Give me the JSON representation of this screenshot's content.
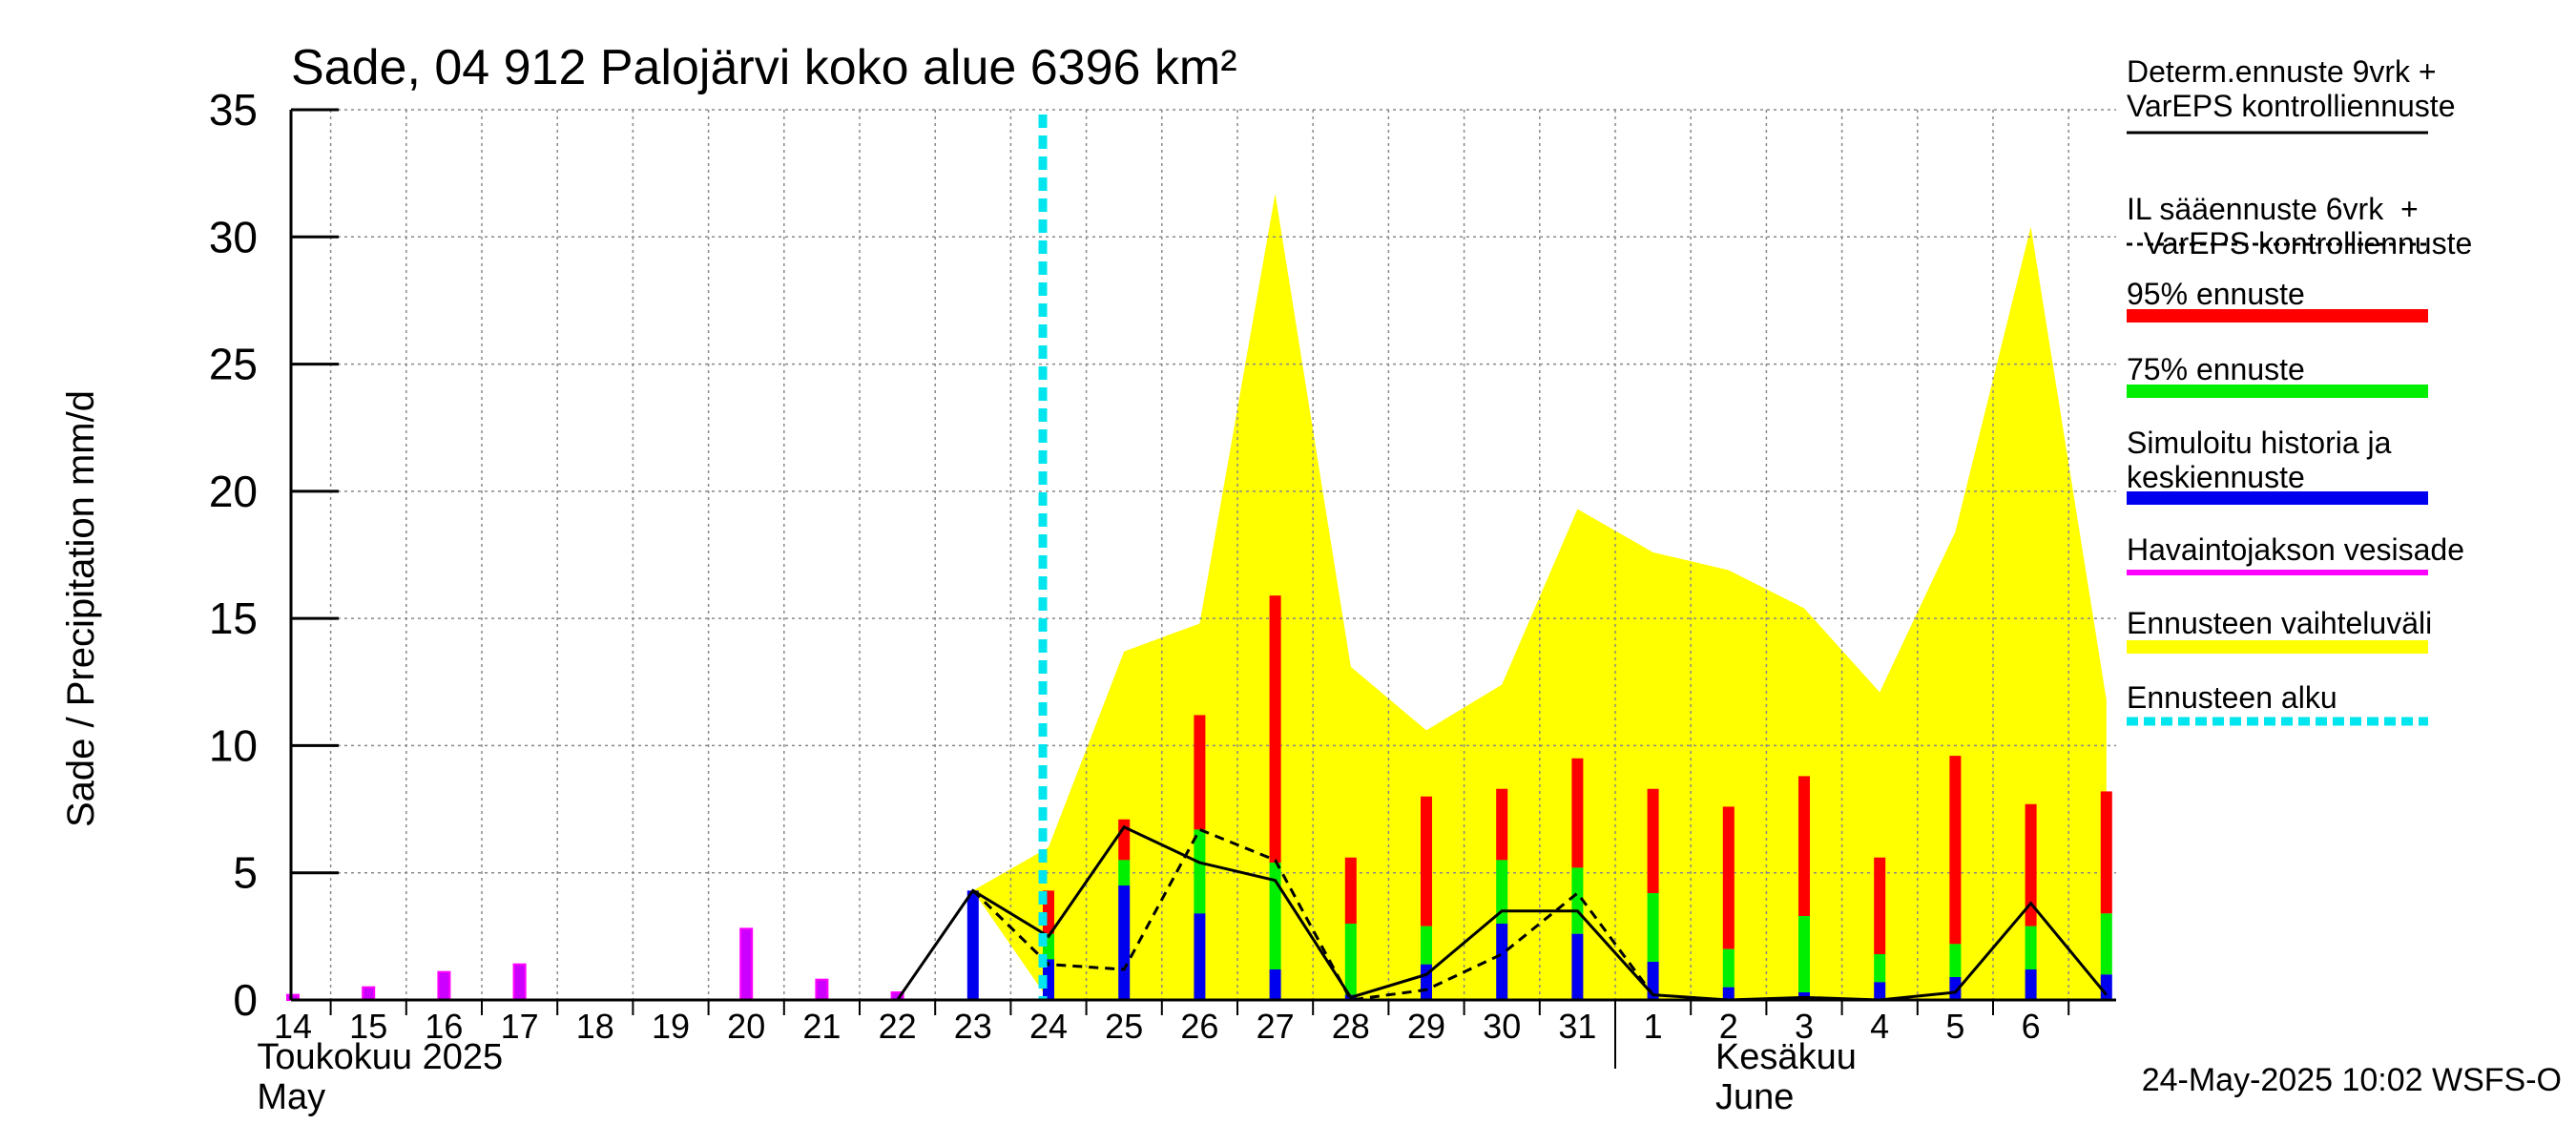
{
  "chart_data": {
    "type": "bar",
    "title": "Sade, 04 912 Palojärvi koko alue 6396 km²",
    "ylabel": "Sade / Precipitation   mm/d",
    "ylim": [
      0,
      35
    ],
    "yticks": [
      0,
      5,
      10,
      15,
      20,
      25,
      30,
      35
    ],
    "grid": true,
    "legend_position": "right",
    "x_ticks": [
      {
        "x": 0,
        "label": "14"
      },
      {
        "x": 1,
        "label": "15"
      },
      {
        "x": 2,
        "label": "16"
      },
      {
        "x": 3,
        "label": "17"
      },
      {
        "x": 4,
        "label": "18"
      },
      {
        "x": 5,
        "label": "19"
      },
      {
        "x": 6,
        "label": "20"
      },
      {
        "x": 7,
        "label": "21"
      },
      {
        "x": 8,
        "label": "22"
      },
      {
        "x": 9,
        "label": "23"
      },
      {
        "x": 10,
        "label": "24"
      },
      {
        "x": 11,
        "label": "25"
      },
      {
        "x": 12,
        "label": "26"
      },
      {
        "x": 13,
        "label": "27"
      },
      {
        "x": 14,
        "label": "28"
      },
      {
        "x": 15,
        "label": "29"
      },
      {
        "x": 16,
        "label": "30"
      },
      {
        "x": 17,
        "label": "31"
      },
      {
        "x": 18,
        "label": "1"
      },
      {
        "x": 19,
        "label": "2"
      },
      {
        "x": 20,
        "label": "3"
      },
      {
        "x": 21,
        "label": "4"
      },
      {
        "x": 22,
        "label": "5"
      },
      {
        "x": 23,
        "label": "6"
      }
    ],
    "month_labels": [
      {
        "x": 0,
        "lines": [
          "Toukokuu  2025",
          "May"
        ]
      },
      {
        "x": 19.3,
        "lines": [
          "Kesäkuu",
          "June"
        ]
      }
    ],
    "month_divider_x": 18,
    "forecast_start_x": 10,
    "xlim": [
      0,
      24
    ],
    "observed_precipitation": [
      {
        "x": 0,
        "value": 0.2
      },
      {
        "x": 1,
        "value": 0.5
      },
      {
        "x": 2,
        "value": 1.1
      },
      {
        "x": 3,
        "value": 1.4
      },
      {
        "x": 6,
        "value": 2.8
      },
      {
        "x": 7,
        "value": 0.8
      },
      {
        "x": 8,
        "value": 0.3
      }
    ],
    "simulated_history": [
      {
        "x": 9,
        "value": 4.3
      }
    ],
    "forecast_bars": [
      {
        "x": 10,
        "median": 1.6,
        "p75": 2.6,
        "p95": 4.3
      },
      {
        "x": 11,
        "median": 4.5,
        "p75": 5.5,
        "p95": 7.1
      },
      {
        "x": 12,
        "median": 3.4,
        "p75": 6.7,
        "p95": 11.2
      },
      {
        "x": 13,
        "median": 1.2,
        "p75": 5.4,
        "p95": 15.9
      },
      {
        "x": 14,
        "median": 0.2,
        "p75": 3.0,
        "p95": 5.6
      },
      {
        "x": 15,
        "median": 1.4,
        "p75": 2.9,
        "p95": 8.0
      },
      {
        "x": 16,
        "median": 3.0,
        "p75": 5.5,
        "p95": 8.3
      },
      {
        "x": 17,
        "median": 2.6,
        "p75": 5.2,
        "p95": 9.5
      },
      {
        "x": 18,
        "median": 1.5,
        "p75": 4.2,
        "p95": 8.3
      },
      {
        "x": 19,
        "median": 0.5,
        "p75": 2.0,
        "p95": 7.6
      },
      {
        "x": 20,
        "median": 0.3,
        "p75": 3.3,
        "p95": 8.8
      },
      {
        "x": 21,
        "median": 0.7,
        "p75": 1.8,
        "p95": 5.6
      },
      {
        "x": 22,
        "median": 0.9,
        "p75": 2.2,
        "p95": 9.6
      },
      {
        "x": 23,
        "median": 1.2,
        "p75": 2.9,
        "p95": 7.7
      },
      {
        "x": 24,
        "median": 1.0,
        "p75": 3.4,
        "p95": 8.2
      }
    ],
    "forecast_range": {
      "x": [
        9,
        10,
        11,
        12,
        13,
        14,
        15,
        16,
        17,
        18,
        19,
        20,
        21,
        22,
        23,
        24
      ],
      "upper": [
        4.3,
        6.0,
        13.7,
        14.8,
        31.7,
        13.1,
        10.6,
        12.4,
        19.3,
        17.6,
        16.9,
        15.4,
        12.1,
        18.4,
        30.4,
        11.8
      ],
      "lower": [
        4.3,
        0.0,
        0.0,
        0.0,
        0.0,
        0.0,
        0.0,
        0.0,
        0.0,
        0.0,
        0.0,
        0.0,
        0.0,
        0.0,
        0.0,
        0.0
      ]
    },
    "deterministic_9d": {
      "x": [
        8,
        9,
        10,
        11,
        12,
        13,
        14,
        15,
        16,
        17,
        18,
        19,
        20,
        21,
        22,
        23,
        24
      ],
      "values": [
        0.0,
        4.3,
        2.5,
        6.8,
        5.4,
        4.7,
        0.1,
        1.0,
        3.5,
        3.5,
        0.2,
        0.0,
        0.1,
        0.0,
        0.3,
        3.8,
        0.2
      ]
    },
    "il_forecast_6d": {
      "x": [
        9,
        10,
        11,
        12,
        13,
        14,
        15,
        16,
        17,
        18
      ],
      "values": [
        4.3,
        1.4,
        1.2,
        6.7,
        5.5,
        0.0,
        0.4,
        1.8,
        4.2,
        0.2
      ]
    },
    "legend": [
      {
        "label": "Determ.ennuste 9vrk +\nVarEPS kontrolliennuste",
        "color": "#000000",
        "style": "solid-thin"
      },
      {
        "label": "IL sääennuste 6vrk  +\n  VarEPS kontrolliennuste",
        "color": "#000000",
        "style": "dashed"
      },
      {
        "label": "95% ennuste",
        "color": "#ff0000",
        "style": "thick"
      },
      {
        "label": "75% ennuste",
        "color": "#00ee00",
        "style": "thick"
      },
      {
        "label": "Simuloitu historia ja\nkeskiennuste",
        "color": "#0000ee",
        "style": "thick"
      },
      {
        "label": "Havaintojakson vesisade",
        "color": "#ff00ff",
        "style": "medium"
      },
      {
        "label": "Ennusteen vaihteluväli",
        "color": "#ffff00",
        "style": "thick"
      },
      {
        "label": "Ennusteen alku",
        "color": "#00e5ee",
        "style": "dashed-thick"
      }
    ],
    "colors": {
      "observed": "#cc00ff",
      "observed_edge": "#ff00ff",
      "median": "#0000ee",
      "p75": "#00ee00",
      "p95": "#ff0000",
      "range": "#ffff00",
      "forecast_start": "#00e5ee",
      "grid": "#888888"
    },
    "footer": "24-May-2025 10:02 WSFS-O"
  }
}
